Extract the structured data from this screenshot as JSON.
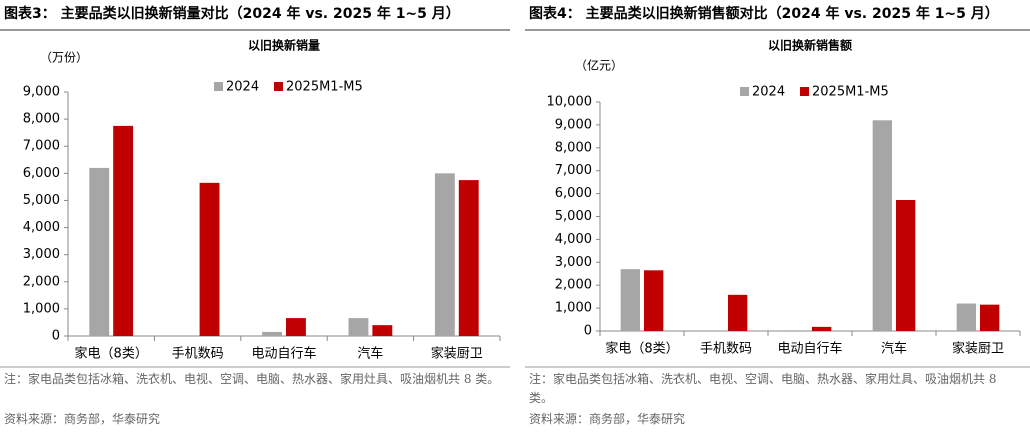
{
  "chart_data": [
    {
      "type": "bar",
      "figure_title": "图表3：  主要品类以旧换新销量对比（2024 年  vs. 2025 年 1~5 月）",
      "title": "以旧换新销量",
      "unit": "（万份）",
      "categories": [
        "家电（8类）",
        "手机数码",
        "电动自行车",
        "汽车",
        "家装厨卫"
      ],
      "series": [
        {
          "name": "2024",
          "color": "#a6a6a6",
          "values": [
            6200,
            null,
            150,
            660,
            6000
          ]
        },
        {
          "name": "2025M1-M5",
          "color": "#c00000",
          "values": [
            7750,
            5650,
            660,
            400,
            5750
          ]
        }
      ],
      "ylim": [
        0,
        9000
      ],
      "yticks": [
        0,
        {
          "value": 1000,
          "label": "1,000"
        },
        {
          "value": 2000,
          "label": "2,000"
        },
        {
          "value": 3000,
          "label": "3,000"
        },
        {
          "value": 4000,
          "label": "4,000"
        },
        {
          "value": 5000,
          "label": "5,000"
        },
        {
          "value": 6000,
          "label": "6,000"
        },
        {
          "value": 7000,
          "label": "7,000"
        },
        {
          "value": 8000,
          "label": "8,000"
        },
        {
          "value": 9000,
          "label": "9,000"
        }
      ],
      "grid": false,
      "note": "注：家电品类包括冰箱、洗衣机、电视、空调、电脑、热水器、家用灶具、吸油烟机共 8 类。",
      "source": "资料来源：商务部，华泰研究"
    },
    {
      "type": "bar",
      "figure_title": "图表4：  主要品类以旧换新销售额对比（2024 年  vs. 2025 年 1~5 月）",
      "title": "以旧换新销售额",
      "unit": "（亿元）",
      "categories": [
        "家电（8类）",
        "手机数码",
        "电动自行车",
        "汽车",
        "家装厨卫"
      ],
      "series": [
        {
          "name": "2024",
          "color": "#a6a6a6",
          "values": [
            2700,
            null,
            30,
            9200,
            1200
          ]
        },
        {
          "name": "2025M1-M5",
          "color": "#c00000",
          "values": [
            2650,
            1580,
            180,
            5720,
            1150
          ]
        }
      ],
      "ylim": [
        0,
        10000
      ],
      "yticks": [
        0,
        {
          "value": 1000,
          "label": "1,000"
        },
        {
          "value": 2000,
          "label": "2,000"
        },
        {
          "value": 3000,
          "label": "3,000"
        },
        {
          "value": 4000,
          "label": "4,000"
        },
        {
          "value": 5000,
          "label": "5,000"
        },
        {
          "value": 6000,
          "label": "6,000"
        },
        {
          "value": 7000,
          "label": "7,000"
        },
        {
          "value": 8000,
          "label": "8,000"
        },
        {
          "value": 9000,
          "label": "9,000"
        },
        {
          "value": 10000,
          "label": "10,000"
        }
      ],
      "grid": false,
      "note": "注：家电品类包括冰箱、洗衣机、电视、空调、电脑、热水器、家用灶具、吸油烟机共 8 类。",
      "source": "资料来源：商务部，华泰研究"
    }
  ]
}
